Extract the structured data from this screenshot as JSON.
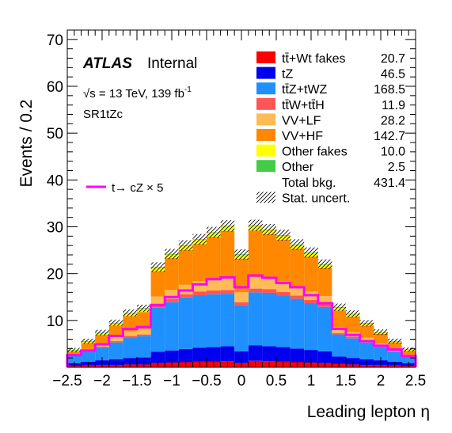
{
  "chart_data": {
    "type": "stacked-histogram",
    "xlabel": "Leading lepton  η",
    "ylabel": "Events / 0.2",
    "xlim": [
      -2.5,
      2.5
    ],
    "ylim": [
      0,
      72
    ],
    "x_ticks": [
      "−2.5",
      "−2",
      "−1.5",
      "−1",
      "−0.5",
      "0",
      "0.5",
      "1",
      "1.5",
      "2",
      "2.5"
    ],
    "y_ticks": [
      "10",
      "20",
      "30",
      "40",
      "50",
      "60",
      "70"
    ],
    "labels": {
      "atlas": "ATLAS",
      "internal": "Internal",
      "energy": "√s = 13 TeV, 139 fb",
      "energy_exp": "-1",
      "region": "SR1tZc"
    },
    "bin_edges": [
      -2.5,
      -2.3,
      -2.1,
      -1.9,
      -1.7,
      -1.5,
      -1.3,
      -1.1,
      -0.9,
      -0.7,
      -0.5,
      -0.3,
      -0.1,
      0.1,
      0.3,
      0.5,
      0.7,
      0.9,
      1.1,
      1.3,
      1.5,
      1.7,
      1.9,
      2.1,
      2.3,
      2.5
    ],
    "series": [
      {
        "name": "tt̄+Wt fakes",
        "yield": "20.7",
        "color": "#ff0000",
        "values": [
          0.3,
          0.4,
          0.5,
          0.5,
          0.6,
          0.6,
          0.9,
          1.0,
          1.1,
          1.2,
          1.2,
          1.3,
          0.9,
          1.4,
          1.3,
          1.2,
          1.1,
          1.0,
          0.9,
          0.7,
          0.6,
          0.5,
          0.5,
          0.4,
          0.3
        ]
      },
      {
        "name": "tZ",
        "yield": "46.5",
        "color": "#0000ee",
        "values": [
          0.6,
          0.8,
          1.0,
          1.2,
          1.4,
          1.5,
          2.4,
          2.6,
          2.8,
          3.0,
          3.1,
          3.2,
          2.5,
          3.3,
          3.2,
          3.1,
          2.9,
          2.7,
          2.5,
          1.6,
          1.4,
          1.2,
          1.0,
          0.8,
          0.6
        ]
      },
      {
        "name": "tt̄Z+tWZ",
        "yield": "168.5",
        "color": "#1e90ff",
        "values": [
          1.5,
          2.1,
          2.7,
          3.6,
          4.4,
          4.6,
          9.5,
          10.3,
          11.0,
          11.2,
          11.3,
          11.2,
          9.8,
          11.3,
          11.4,
          11.0,
          10.6,
          10.0,
          9.5,
          4.7,
          4.2,
          3.6,
          2.8,
          2.1,
          1.5
        ]
      },
      {
        "name": "tt̄W+tt̄H",
        "yield": "11.9",
        "color": "#ff5555",
        "values": [
          0.1,
          0.2,
          0.2,
          0.3,
          0.3,
          0.3,
          0.6,
          0.7,
          0.7,
          0.8,
          0.8,
          0.8,
          0.7,
          0.8,
          0.8,
          0.8,
          0.7,
          0.7,
          0.6,
          0.3,
          0.3,
          0.2,
          0.2,
          0.2,
          0.1
        ]
      },
      {
        "name": "VV+LF",
        "yield": "28.2",
        "color": "#ffbb55",
        "values": [
          0.2,
          0.4,
          0.6,
          0.8,
          1.0,
          1.2,
          1.7,
          1.9,
          2.0,
          2.2,
          2.3,
          2.4,
          2.1,
          2.4,
          2.3,
          2.2,
          2.0,
          1.8,
          1.7,
          1.2,
          1.0,
          0.8,
          0.6,
          0.4,
          0.2
        ]
      },
      {
        "name": "VV+HF",
        "yield": "142.7",
        "color": "#ff8800",
        "values": [
          0.7,
          1.3,
          1.9,
          2.5,
          3.2,
          3.6,
          5.4,
          6.8,
          7.4,
          7.9,
          9.1,
          10.2,
          7.2,
          10.0,
          9.4,
          8.9,
          8.0,
          7.4,
          6.0,
          3.6,
          3.3,
          2.6,
          2.0,
          1.4,
          0.8
        ]
      },
      {
        "name": "Other fakes",
        "yield": "10.0",
        "color": "#ffff00",
        "values": [
          0.2,
          0.3,
          0.4,
          0.5,
          0.6,
          0.7,
          0.8,
          0.8,
          0.9,
          0.9,
          0.9,
          1.0,
          0.8,
          1.0,
          0.9,
          0.9,
          0.8,
          0.8,
          0.7,
          0.6,
          0.5,
          0.4,
          0.3,
          0.2,
          0.2
        ]
      },
      {
        "name": "Other",
        "yield": "2.5",
        "color": "#44cc44",
        "values": [
          0.1,
          0.1,
          0.1,
          0.1,
          0.1,
          0.1,
          0.1,
          0.1,
          0.1,
          0.1,
          0.1,
          0.1,
          0.1,
          0.1,
          0.1,
          0.1,
          0.1,
          0.1,
          0.1,
          0.1,
          0.1,
          0.1,
          0.1,
          0.1,
          0.1
        ]
      }
    ],
    "total": {
      "name": "Total bkg.",
      "yield": "431.4"
    },
    "uncertainty": {
      "name": "Stat. uncert."
    },
    "signal": {
      "name": "t→ cZ × 5",
      "color": "#ff00ff",
      "values": [
        2.6,
        3.6,
        4.9,
        6.7,
        8.2,
        8.6,
        13.3,
        15.0,
        16.4,
        17.7,
        18.8,
        19.2,
        17.1,
        19.6,
        19.1,
        18.0,
        17.1,
        15.4,
        13.7,
        8.2,
        6.9,
        5.6,
        4.6,
        3.8,
        2.4
      ]
    }
  }
}
